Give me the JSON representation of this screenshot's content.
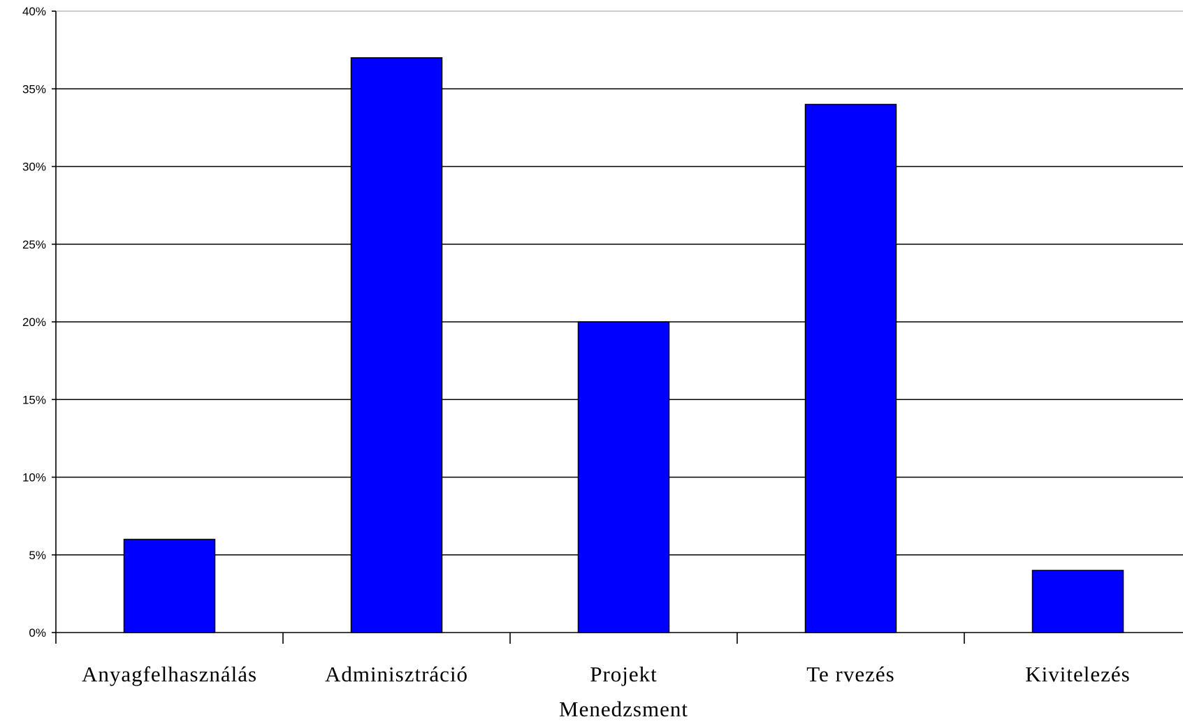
{
  "chart_data": {
    "type": "bar",
    "title": "",
    "xlabel": "",
    "ylabel": "",
    "categories": [
      [
        "Anyagfelhasználás"
      ],
      [
        "Adminisztráció"
      ],
      [
        "Projekt",
        "Menedzsment"
      ],
      [
        "Te rvezés"
      ],
      [
        "Kivitelezés"
      ]
    ],
    "values": [
      6,
      37,
      20,
      34,
      4
    ],
    "ylim": [
      0,
      40
    ],
    "yticks": [
      0,
      5,
      10,
      15,
      20,
      25,
      30,
      35,
      40
    ],
    "ytick_labels": [
      "0%",
      "5%",
      "10%",
      "15%",
      "20%",
      "25%",
      "30%",
      "35%",
      "40%"
    ],
    "grid": true,
    "legend": "none",
    "colors": {
      "bar_fill": "#0000ff",
      "bar_stroke": "#000000",
      "grid": "#000000",
      "axis": "#000000"
    }
  }
}
